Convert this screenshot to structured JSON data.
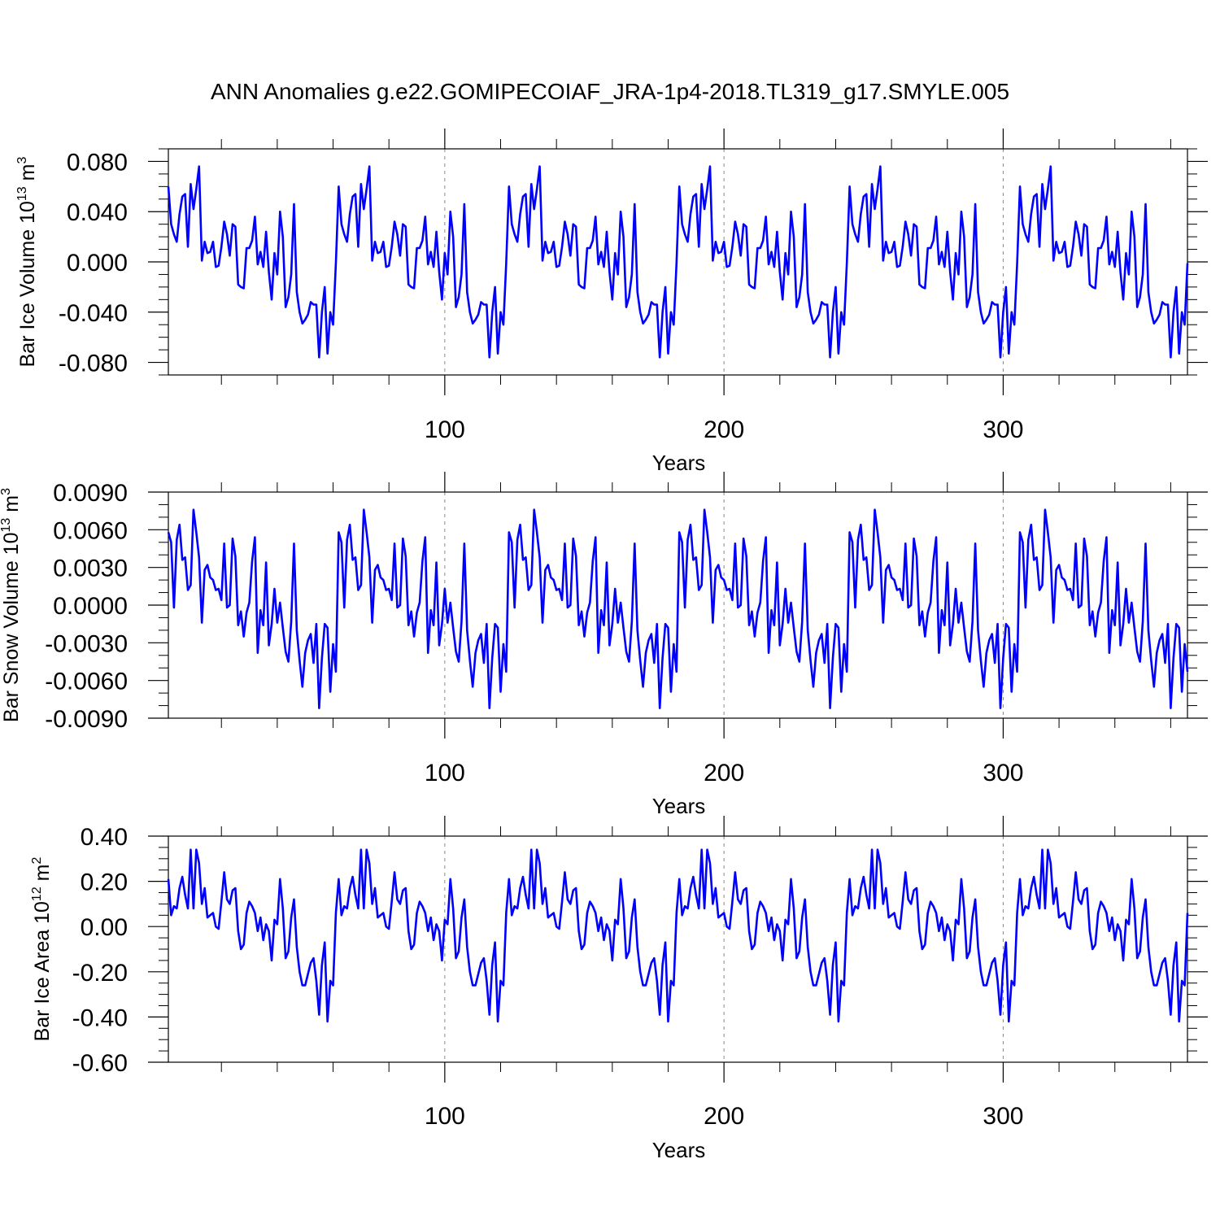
{
  "figure_title": "ANN Anomalies g.e22.GOMIPECOIAF_JRA-1p4-2018.TL319_g17.SMYLE.005",
  "colors": {
    "series": "#0000ff",
    "axis": "#000000",
    "grid": "#888888"
  },
  "chart_data": [
    {
      "type": "line",
      "title": "ANN Anomalies g.e22.GOMIPECOIAF_JRA-1p4-2018.TL319_g17.SMYLE.005",
      "xlabel": "Years",
      "ylabel": "Bar Ice Volume",
      "ylabel_unit_base": "10",
      "ylabel_unit_exp": "13",
      "ylabel_unit_tail": "m",
      "ylabel_unit_tail_exp": "3",
      "xlim": [
        1,
        366
      ],
      "ylim": [
        -0.09,
        0.09
      ],
      "xticks": [
        100,
        200,
        300
      ],
      "xtick_labels": [
        "100",
        "200",
        "300"
      ],
      "yticks": [
        0.08,
        0.04,
        0.0,
        -0.04,
        -0.08
      ],
      "ytick_labels": [
        "0.080",
        "0.040",
        "0.000",
        "-0.040",
        "-0.080"
      ],
      "ytick_minor_step": 0.01,
      "xtick_minor_step": 20,
      "gridlines_x": [
        100,
        200,
        300
      ],
      "period": 61,
      "x_start": 1,
      "x_end": 366,
      "series_cycle": [
        0.06,
        0.03,
        0.022,
        0.016,
        0.038,
        0.052,
        0.054,
        0.012,
        0.062,
        0.042,
        0.058,
        0.076,
        0.001,
        0.016,
        0.007,
        0.008,
        0.016,
        -0.004,
        -0.003,
        0.012,
        0.032,
        0.022,
        0.005,
        0.03,
        0.028,
        -0.018,
        -0.02,
        -0.021,
        0.011,
        0.011,
        0.017,
        0.036,
        -0.002,
        0.008,
        -0.004,
        0.024,
        -0.008,
        -0.03,
        0.007,
        -0.01,
        0.04,
        0.02,
        -0.036,
        -0.028,
        -0.01,
        0.046,
        -0.024,
        -0.04,
        -0.049,
        -0.046,
        -0.042,
        -0.032,
        -0.034,
        -0.034,
        -0.076,
        -0.04,
        -0.02,
        -0.073,
        -0.04,
        -0.05,
        -0.001
      ]
    },
    {
      "type": "line",
      "xlabel": "Years",
      "ylabel": "Bar Snow Volume",
      "ylabel_unit_base": "10",
      "ylabel_unit_exp": "13",
      "ylabel_unit_tail": "m",
      "ylabel_unit_tail_exp": "3",
      "xlim": [
        1,
        366
      ],
      "ylim": [
        -0.009,
        0.009
      ],
      "xticks": [
        100,
        200,
        300
      ],
      "xtick_labels": [
        "100",
        "200",
        "300"
      ],
      "yticks": [
        0.009,
        0.006,
        0.003,
        0.0,
        -0.003,
        -0.006,
        -0.009
      ],
      "ytick_labels": [
        "0.0090",
        "0.0060",
        "0.0030",
        "0.0000",
        "-0.0030",
        "-0.0060",
        "-0.0090"
      ],
      "ytick_minor_step": 0.001,
      "xtick_minor_step": 20,
      "gridlines_x": [
        100,
        200,
        300
      ],
      "period": 61,
      "x_start": 1,
      "x_end": 366,
      "series_cycle": [
        0.0058,
        0.005,
        -0.0002,
        0.0052,
        0.0064,
        0.0036,
        0.0038,
        0.0012,
        0.0016,
        0.0076,
        0.0058,
        0.0038,
        -0.0014,
        0.0028,
        0.0032,
        0.0022,
        0.002,
        0.0012,
        0.0013,
        0.0004,
        0.0049,
        -0.0002,
        0.0,
        0.0053,
        0.0039,
        -0.0016,
        -0.0005,
        -0.0025,
        -0.0006,
        0.0002,
        0.0035,
        0.0054,
        -0.0038,
        -0.0004,
        -0.0016,
        0.0034,
        -0.0032,
        -0.0015,
        0.0013,
        -0.0014,
        0.0002,
        -0.0018,
        -0.0037,
        -0.0045,
        -0.0013,
        0.0049,
        -0.002,
        -0.0044,
        -0.0065,
        -0.0038,
        -0.0028,
        -0.0023,
        -0.0046,
        -0.0015,
        -0.0082,
        -0.0042,
        -0.0015,
        -0.0018,
        -0.0069,
        -0.0031,
        -0.0053
      ]
    },
    {
      "type": "line",
      "xlabel": "Years",
      "ylabel": "Bar Ice Area",
      "ylabel_unit_base": "10",
      "ylabel_unit_exp": "12",
      "ylabel_unit_tail": "m",
      "ylabel_unit_tail_exp": "2",
      "xlim": [
        1,
        366
      ],
      "ylim": [
        -0.6,
        0.4
      ],
      "xticks": [
        100,
        200,
        300
      ],
      "xtick_labels": [
        "100",
        "200",
        "300"
      ],
      "yticks": [
        0.4,
        0.2,
        0.0,
        -0.2,
        -0.4,
        -0.6
      ],
      "ytick_labels": [
        "0.40",
        "0.20",
        "0.00",
        "-0.20",
        "-0.40",
        "-0.60"
      ],
      "ytick_minor_step": 0.05,
      "xtick_minor_step": 20,
      "gridlines_x": [
        100,
        200,
        300
      ],
      "period": 61,
      "x_start": 1,
      "x_end": 366,
      "series_cycle": [
        0.21,
        0.05,
        0.09,
        0.08,
        0.17,
        0.22,
        0.14,
        0.08,
        0.34,
        0.08,
        0.34,
        0.28,
        0.1,
        0.17,
        0.04,
        0.05,
        0.06,
        0.0,
        -0.01,
        0.11,
        0.24,
        0.12,
        0.1,
        0.16,
        0.17,
        -0.02,
        -0.1,
        -0.08,
        0.06,
        0.11,
        0.09,
        0.06,
        -0.02,
        0.04,
        -0.06,
        0.01,
        -0.02,
        -0.15,
        0.03,
        0.01,
        0.21,
        0.08,
        -0.14,
        -0.11,
        0.04,
        0.12,
        -0.09,
        -0.2,
        -0.26,
        -0.26,
        -0.21,
        -0.16,
        -0.14,
        -0.24,
        -0.39,
        -0.17,
        -0.07,
        -0.42,
        -0.24,
        -0.26,
        0.06
      ]
    }
  ]
}
